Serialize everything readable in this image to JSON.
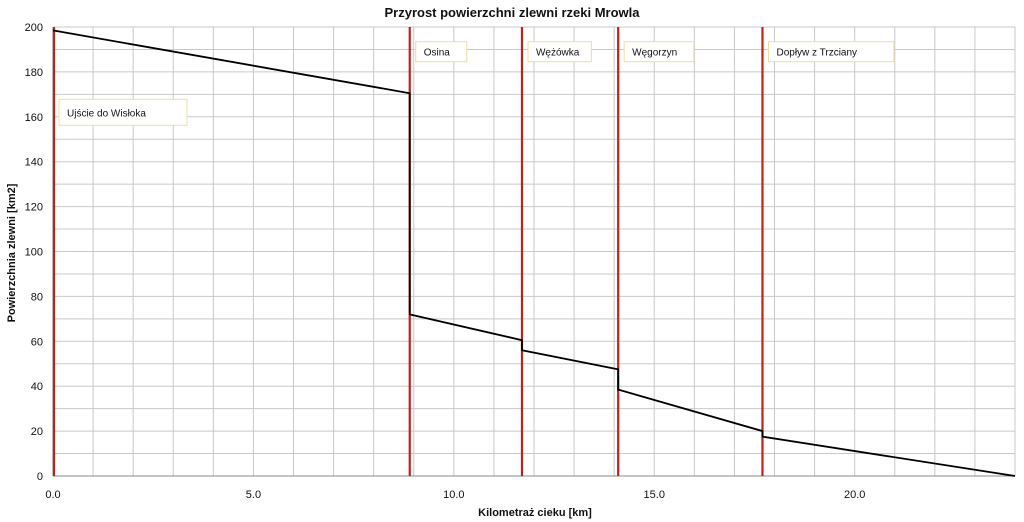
{
  "chart_data": {
    "type": "line",
    "title": "Przyrost powierzchni zlewni rzeki Mrowla",
    "xlabel": "Kilometraż cieku [km]",
    "ylabel": "Powierzchnia zlewni [km2]",
    "xlim": [
      0,
      24
    ],
    "ylim": [
      0,
      200
    ],
    "x_ticks": [
      0,
      5,
      10,
      15,
      20
    ],
    "x_tick_labels": [
      "0.0",
      "5.0",
      "10.0",
      "15.0",
      "20.0"
    ],
    "y_ticks": [
      0,
      20,
      40,
      60,
      80,
      100,
      120,
      140,
      160,
      180,
      200
    ],
    "y_tick_labels": [
      "0",
      "20",
      "40",
      "60",
      "80",
      "100",
      "120",
      "140",
      "160",
      "180",
      "200"
    ],
    "x_minor_step": 1,
    "y_minor_step": 10,
    "grid": true,
    "series": [
      {
        "color": "#000000",
        "points": [
          [
            0,
            198.5
          ],
          [
            8.9,
            170.5
          ],
          [
            8.9,
            72
          ],
          [
            11.7,
            60.5
          ],
          [
            11.7,
            56
          ],
          [
            14.1,
            47.5
          ],
          [
            14.1,
            38.5
          ],
          [
            17.7,
            20
          ],
          [
            17.7,
            17.5
          ],
          [
            24,
            0
          ]
        ]
      }
    ],
    "markers": [
      {
        "x": 0,
        "label": "Ujście do Wisłoka",
        "label_y": 162
      },
      {
        "x": 8.9,
        "label": "Osina",
        "label_y": 189
      },
      {
        "x": 11.7,
        "label": "Wężówka",
        "label_y": 189
      },
      {
        "x": 14.1,
        "label": "Węgorzyn",
        "label_y": 189
      },
      {
        "x": 17.7,
        "label": "Dopływ z Trzciany",
        "label_y": 189
      }
    ],
    "colors": {
      "marker": "#c0201c",
      "line": "#000000",
      "grid": "#c8c8c8",
      "axis": "#888888"
    }
  }
}
